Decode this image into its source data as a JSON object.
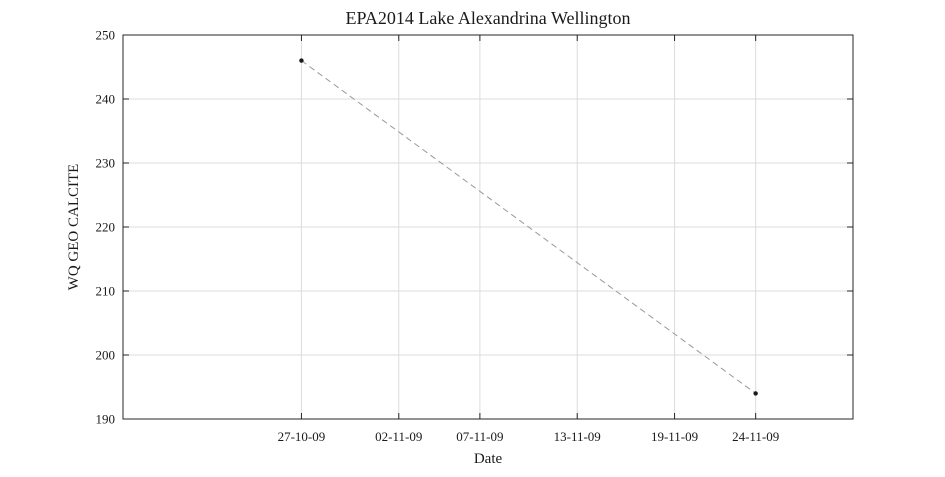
{
  "chart_data": {
    "type": "line",
    "title": "EPA2014 Lake Alexandrina Wellington",
    "xlabel": "Date",
    "ylabel": "WQ GEO CALCITE",
    "x_type": "date",
    "xlim": [
      "2009-10-16",
      "2009-11-30"
    ],
    "ylim": [
      190,
      250
    ],
    "x_ticks": [
      {
        "value": "2009-10-27",
        "label": "27-10-09"
      },
      {
        "value": "2009-11-02",
        "label": "02-11-09"
      },
      {
        "value": "2009-11-07",
        "label": "07-11-09"
      },
      {
        "value": "2009-11-13",
        "label": "13-11-09"
      },
      {
        "value": "2009-11-19",
        "label": "19-11-09"
      },
      {
        "value": "2009-11-24",
        "label": "24-11-09"
      }
    ],
    "y_ticks": [
      190,
      200,
      210,
      220,
      230,
      240,
      250
    ],
    "grid": true,
    "series": [
      {
        "line_style": "dashed",
        "line_color": "#999999",
        "marker_color": "#1a1a1a",
        "points": [
          {
            "x": "2009-10-27",
            "y": 246
          },
          {
            "x": "2009-11-24",
            "y": 194
          }
        ]
      }
    ]
  }
}
